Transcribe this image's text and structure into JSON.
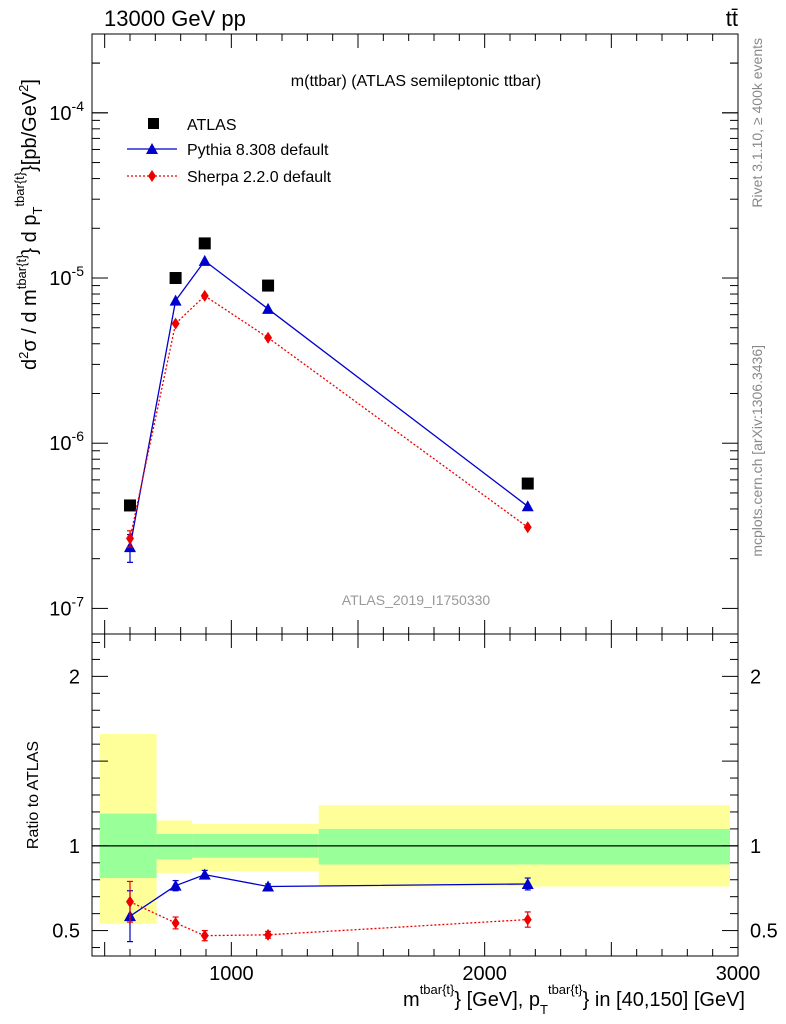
{
  "header": {
    "energy_label": "13000 GeV pp",
    "process_label": "tt̄",
    "plot_title": "m(ttbar) (ATLAS semileptonic ttbar)",
    "analysis_id": "ATLAS_2019_I1750330"
  },
  "side": {
    "rivet_label": "Rivet 3.1.10, ≥ 400k events",
    "source_label": "mcplots.cern.ch [arXiv:1306.3436]"
  },
  "axes": {
    "ylabel_main": "d²σ / d m^{tbar{t}} d p_T^{tbar{t}} [pb/GeV²]",
    "ylabel_ratio": "Ratio to ATLAS",
    "xlabel": "m^{tbar{t}} [GeV], p_T^{tbar{t}} in [40,150] [GeV]"
  },
  "colors": {
    "atlas": "#000000",
    "pythia": "#0000cc",
    "sherpa": "#ee0000",
    "band_inner": "#99ff99",
    "band_outer": "#ffff99"
  },
  "chart_data": [
    {
      "type": "scatter",
      "title": "m(ttbar) (ATLAS semileptonic ttbar)",
      "y_scale": "log",
      "xlim": [
        450,
        3000
      ],
      "ylim": [
        7e-08,
        0.0003
      ],
      "x_ticks": [
        "1000",
        "2000",
        "3000"
      ],
      "y_ticks": [
        "10^{-7}",
        "10^{-6}",
        "10^{-5}",
        "10^{-4}"
      ],
      "legend": "top-left",
      "x": [
        600,
        780,
        895,
        1145,
        2170
      ],
      "series": [
        {
          "name": "ATLAS",
          "marker": "square",
          "values": [
            4.2e-07,
            1e-05,
            1.62e-05,
            9e-06,
            5.7e-07
          ]
        },
        {
          "name": "Pythia 8.308 default",
          "marker": "triangle",
          "line": "solid",
          "values": [
            2.35e-07,
            7.3e-06,
            1.27e-05,
            6.5e-06,
            4.15e-07
          ],
          "errors": [
            4.5e-08,
            0,
            0,
            0,
            0
          ]
        },
        {
          "name": "Sherpa 2.2.0 default",
          "marker": "diamond",
          "line": "dotted",
          "values": [
            2.65e-07,
            5.3e-06,
            7.8e-06,
            4.35e-06,
            3.1e-07
          ],
          "errors": [
            3e-08,
            0,
            0,
            0,
            0
          ]
        }
      ]
    },
    {
      "type": "line",
      "ylabel": "Ratio to ATLAS",
      "xlim": [
        450,
        3000
      ],
      "ylim": [
        0.35,
        2.25
      ],
      "y_ticks": [
        "0.5",
        "1",
        "2"
      ],
      "reference_line": 1,
      "bands": [
        {
          "x_from": 480,
          "x_to": 705,
          "outer": [
            0.54,
            1.66
          ],
          "inner": [
            0.81,
            1.19
          ]
        },
        {
          "x_from": 705,
          "x_to": 845,
          "outer": [
            0.84,
            1.15
          ],
          "inner": [
            0.92,
            1.07
          ]
        },
        {
          "x_from": 845,
          "x_to": 1345,
          "outer": [
            0.85,
            1.13
          ],
          "inner": [
            0.93,
            1.07
          ]
        },
        {
          "x_from": 1345,
          "x_to": 3000,
          "outer": [
            0.76,
            1.24
          ],
          "inner": [
            0.89,
            1.1
          ]
        }
      ],
      "x": [
        600,
        780,
        895,
        1145,
        2170
      ],
      "series": [
        {
          "name": "Pythia 8.308 default",
          "values": [
            0.585,
            0.765,
            0.83,
            0.76,
            0.775
          ],
          "errors": [
            0.15,
            0.03,
            0.025,
            0.015,
            0.035
          ]
        },
        {
          "name": "Sherpa 2.2.0 default",
          "values": [
            0.67,
            0.545,
            0.47,
            0.475,
            0.565
          ],
          "errors": [
            0.12,
            0.035,
            0.03,
            0.02,
            0.045
          ]
        }
      ]
    }
  ]
}
